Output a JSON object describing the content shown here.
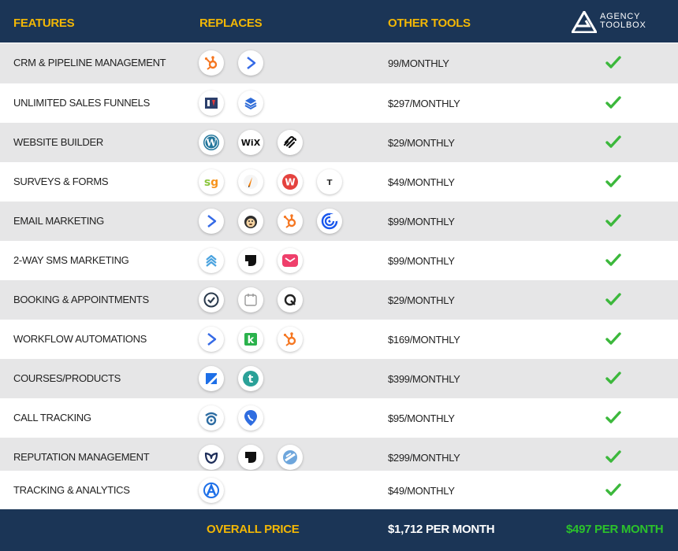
{
  "header": {
    "features": "FEATURES",
    "replaces": "REPLACES",
    "other_tools": "OTHER TOOLS",
    "brand_line1": "AGENCY",
    "brand_line2": "TOOLBOX"
  },
  "rows": [
    {
      "feature": "CRM & PIPELINE MANAGEMENT",
      "price": "99/MONTHLY",
      "icons": [
        "hubspot-icon",
        "activecampaign-icon"
      ],
      "included": true
    },
    {
      "feature": "UNLIMITED SALES FUNNELS",
      "price": "$297/MONTHLY",
      "icons": [
        "clickfunnels-icon",
        "leadpages-icon"
      ],
      "included": true
    },
    {
      "feature": "WEBSITE BUILDER",
      "price": "$29/MONTHLY",
      "icons": [
        "wordpress-icon",
        "wix-icon",
        "squarespace-icon"
      ],
      "included": true
    },
    {
      "feature": "SURVEYS & FORMS",
      "price": "$49/MONTHLY",
      "icons": [
        "surveygizmo-icon",
        "jotform-icon",
        "wufoo-icon",
        "typeform-icon"
      ],
      "included": true
    },
    {
      "feature": "EMAIL MARKETING",
      "price": "$99/MONTHLY",
      "icons": [
        "activecampaign-icon",
        "mailchimp-icon",
        "hubspot-icon",
        "constant-contact-icon"
      ],
      "included": true
    },
    {
      "feature": "2-WAY SMS MARKETING",
      "price": "$99/MONTHLY",
      "icons": [
        "textline-icon",
        "podium-icon",
        "simpletexting-icon"
      ],
      "included": true
    },
    {
      "feature": "BOOKING & APPOINTMENTS",
      "price": "$29/MONTHLY",
      "icons": [
        "acuity-icon",
        "calendly-icon",
        "oncehub-icon"
      ],
      "included": true
    },
    {
      "feature": "WORKFLOW AUTOMATIONS",
      "price": "$169/MONTHLY",
      "icons": [
        "activecampaign-icon",
        "keap-icon",
        "hubspot-icon"
      ],
      "included": true
    },
    {
      "feature": "COURSES/PRODUCTS",
      "price": "$399/MONTHLY",
      "icons": [
        "kajabi-icon",
        "teachable-icon"
      ],
      "included": true
    },
    {
      "feature": "CALL TRACKING",
      "price": "$95/MONTHLY",
      "icons": [
        "callrail-icon",
        "calltrackingmetrics-icon"
      ],
      "included": true
    },
    {
      "feature": "REPUTATION MANAGEMENT",
      "price": "$299/MONTHLY",
      "icons": [
        "birdeye-icon",
        "podium-icon",
        "grade-us-icon"
      ],
      "included": true
    },
    {
      "feature": "TRACKING & ANALYTICS",
      "price": "$49/MONTHLY",
      "icons": [
        "google-analytics-icon"
      ],
      "included": true
    }
  ],
  "footer": {
    "overall": "OVERALL PRICE",
    "total": "$1,712 PER MONTH",
    "ours": "$497 PER MONTH"
  },
  "colors": {
    "navy": "#1b3556",
    "gold": "#f2b705",
    "check_green": "#3cb83c",
    "row_grey": "#e6e6e7"
  }
}
